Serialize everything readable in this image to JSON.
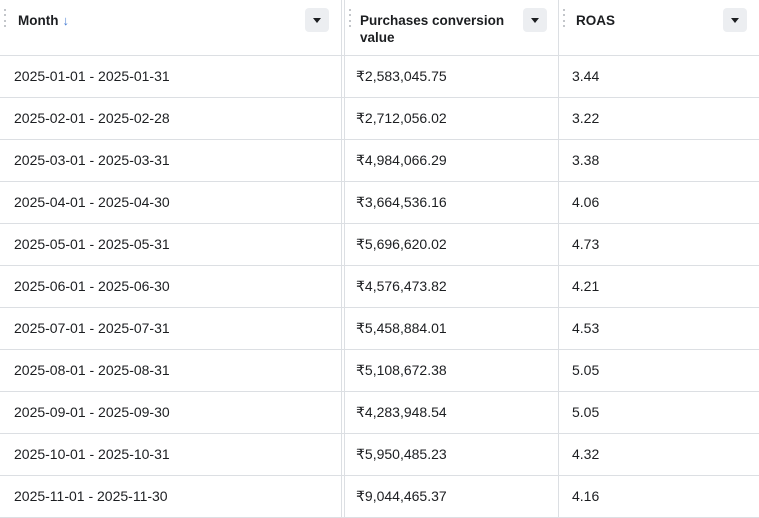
{
  "columns": [
    {
      "label": "Month",
      "sort_icon": "↓"
    },
    {
      "label": "Purchases conversion value"
    },
    {
      "label": "ROAS"
    }
  ],
  "rows": [
    {
      "month": "2025-01-01 - 2025-01-31",
      "value": "₹2,583,045.75",
      "roas": "3.44"
    },
    {
      "month": "2025-02-01 - 2025-02-28",
      "value": "₹2,712,056.02",
      "roas": "3.22"
    },
    {
      "month": "2025-03-01 - 2025-03-31",
      "value": "₹4,984,066.29",
      "roas": "3.38"
    },
    {
      "month": "2025-04-01 - 2025-04-30",
      "value": "₹3,664,536.16",
      "roas": "4.06"
    },
    {
      "month": "2025-05-01 - 2025-05-31",
      "value": "₹5,696,620.02",
      "roas": "4.73"
    },
    {
      "month": "2025-06-01 - 2025-06-30",
      "value": "₹4,576,473.82",
      "roas": "4.21"
    },
    {
      "month": "2025-07-01 - 2025-07-31",
      "value": "₹5,458,884.01",
      "roas": "4.53"
    },
    {
      "month": "2025-08-01 - 2025-08-31",
      "value": "₹5,108,672.38",
      "roas": "5.05"
    },
    {
      "month": "2025-09-01 - 2025-09-30",
      "value": "₹4,283,948.54",
      "roas": "5.05"
    },
    {
      "month": "2025-10-01 - 2025-10-31",
      "value": "₹5,950,485.23",
      "roas": "4.32"
    },
    {
      "month": "2025-11-01 - 2025-11-30",
      "value": "₹9,044,465.37",
      "roas": "4.16"
    }
  ]
}
